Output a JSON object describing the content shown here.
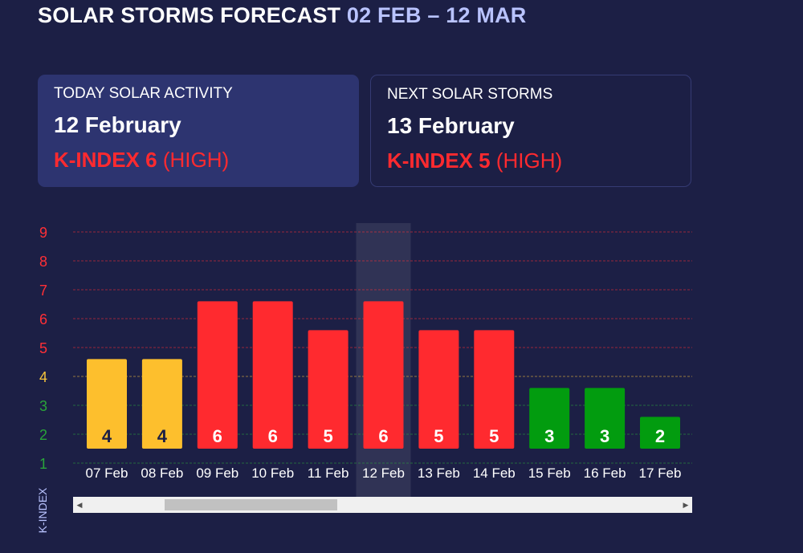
{
  "header": {
    "title": "SOLAR STORMS FORECAST",
    "range": "02 FEB – 12 MAR"
  },
  "cards": {
    "today": {
      "label": "TODAY SOLAR ACTIVITY",
      "date": "12 February",
      "kindex": "K-INDEX 6",
      "level": "(HIGH)"
    },
    "next": {
      "label": "NEXT SOLAR STORMS",
      "date": "13 February",
      "kindex": "K-INDEX 5",
      "level": "(HIGH)"
    }
  },
  "scrollbar": {
    "left_icon": "arrow-left-icon",
    "right_icon": "arrow-right-icon",
    "left_glyph": "◀",
    "right_glyph": "▶"
  },
  "chart_data": {
    "type": "bar",
    "ylabel": "K-INDEX",
    "ylim": [
      1,
      9
    ],
    "yticks": [
      "1",
      "2",
      "3",
      "4",
      "5",
      "6",
      "7",
      "8",
      "9"
    ],
    "categories": [
      "07 Feb",
      "08 Feb",
      "09 Feb",
      "10 Feb",
      "11 Feb",
      "12 Feb",
      "13 Feb",
      "14 Feb",
      "15 Feb",
      "16 Feb",
      "17 Feb"
    ],
    "values": [
      4,
      4,
      6,
      6,
      5,
      6,
      5,
      5,
      3,
      3,
      2
    ],
    "highlighted": "12 Feb",
    "colors": {
      "low": "#029c0f",
      "moderate": "#fdbf2d",
      "high": "#ff2a2f",
      "low_tick": "#29a43a",
      "moderate_tick": "#f5c33c",
      "high_tick": "#ff2f36",
      "moderate_label": "#1c1f45",
      "label": "#ffffff"
    },
    "grid": true
  }
}
